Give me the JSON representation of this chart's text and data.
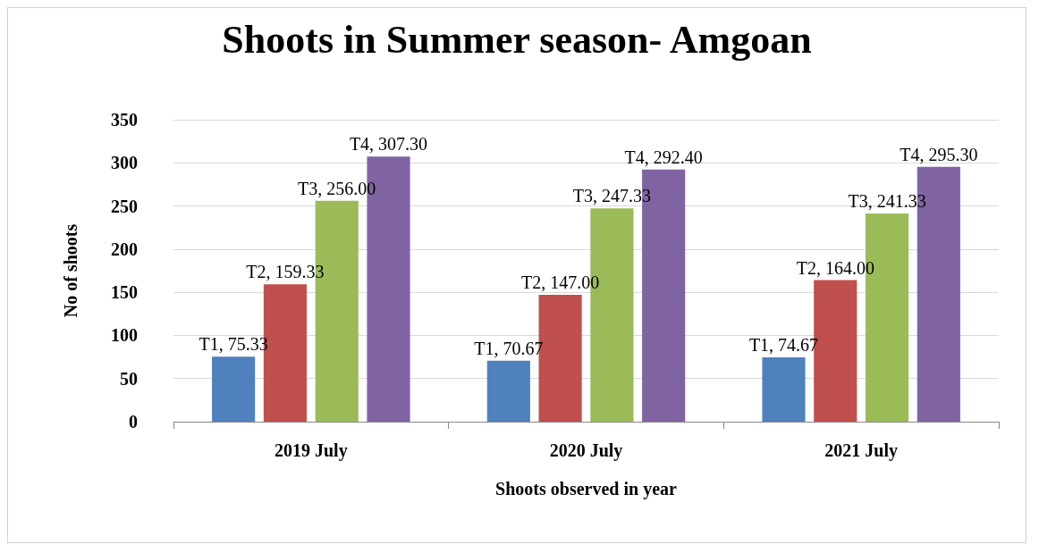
{
  "chart_data": {
    "type": "bar",
    "title": "Shoots in Summer season- Amgoan",
    "xlabel": "Shoots observed in year",
    "ylabel": "No of shoots",
    "categories": [
      "2019 July",
      "2020 July",
      "2021 July"
    ],
    "series": [
      {
        "color": "#4f81bd",
        "values": [
          75.33,
          70.67,
          74.67
        ],
        "value_labels": [
          "T1, 75.33",
          "T1, 70.67",
          "T1, 74.67"
        ]
      },
      {
        "color": "#c0504d",
        "values": [
          159.33,
          147.0,
          164.0
        ],
        "value_labels": [
          "T2, 159.33",
          "T2, 147.00",
          "T2, 164.00"
        ]
      },
      {
        "color": "#9bbb59",
        "values": [
          256.0,
          247.33,
          241.33
        ],
        "value_labels": [
          "T3, 256.00",
          "T3, 247.33",
          "T3, 241.33"
        ]
      },
      {
        "color": "#8064a2",
        "values": [
          307.3,
          292.4,
          295.3
        ],
        "value_labels": [
          "T4, 307.30",
          "T4, 292.40",
          "T4, 295.30"
        ]
      }
    ],
    "ylim": [
      0,
      350
    ],
    "yticks": [
      0,
      50,
      100,
      150,
      200,
      250,
      300,
      350
    ],
    "grid": "y",
    "legend": false
  }
}
